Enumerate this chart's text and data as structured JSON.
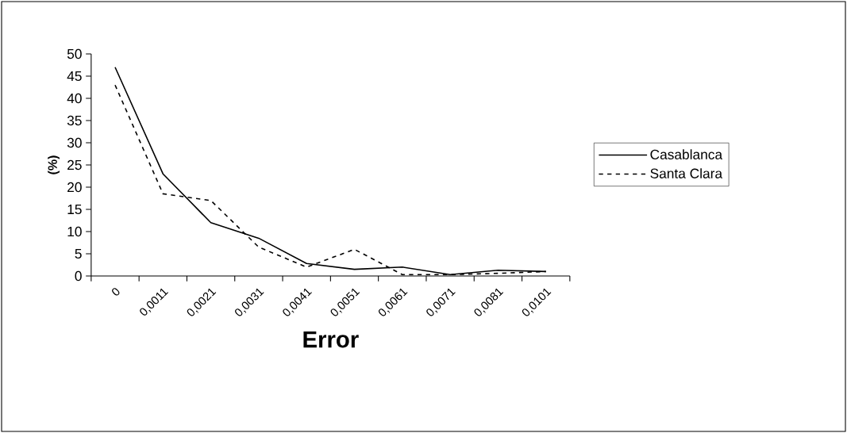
{
  "chart_data": {
    "type": "line",
    "xlabel": "Error",
    "ylabel": "(%)",
    "categories": [
      "0",
      "0,0011",
      "0,0021",
      "0,0031",
      "0,0041",
      "0,0051",
      "0,0061",
      "0,0071",
      "0,0081",
      "0,0101"
    ],
    "series": [
      {
        "name": "Casablanca",
        "color": "#000000",
        "line_style": "solid",
        "values": [
          47,
          23,
          12,
          8.5,
          2.8,
          1.5,
          2.0,
          0.3,
          1.3,
          1.0
        ]
      },
      {
        "name": "Santa Clara",
        "color": "#000000",
        "line_style": "dashed",
        "values": [
          43,
          18.5,
          17,
          6.5,
          2.0,
          6.0,
          0.3,
          0.3,
          0.6,
          1.0
        ]
      }
    ],
    "ylim": [
      0,
      50
    ],
    "yticks": [
      0,
      5,
      10,
      15,
      20,
      25,
      30,
      35,
      40,
      45,
      50
    ],
    "grid": false,
    "legend": "right"
  }
}
